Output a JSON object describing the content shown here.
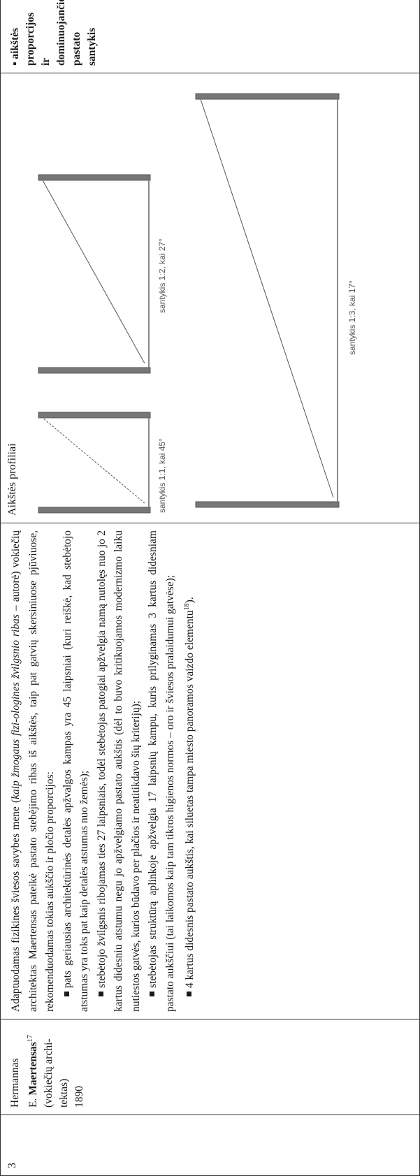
{
  "row": {
    "number": "3",
    "author": {
      "line1": "Hermannas",
      "initial": "E. ",
      "surname": "Maertensas",
      "sup": "17",
      "role": "(vokiečių archi-tektas)",
      "year": "1890"
    },
    "text": {
      "intro_a": "Adaptuodamas fizikines šviesos savybes mene (",
      "intro_italic": "kaip žmogaus fizi-ologines žvilgsnio ribas",
      "intro_b": " – autorė) vokiečių architektas Maertensas pateikė pastato stebėjimo ribas iš aikštės, taip pat gatvių skersiniuose pjūviuose, rekomenduodamas tokias aukščio ir pločio proporcijos:",
      "bullet1": "pats geriausias architektūrinės detalės apžvalgos kampas yra 45 laipsniai (kuri reiškė, kad stebėtojo atstumas yra toks pat kaip detalės atstumas nuo žemės);",
      "bullet2": "stebėtojo žvilgsnis ribojamas ties 27 laipsniais, todėl stebėtojas patogiai apžvelgia namą nutolęs nuo jo 2 kartus didesniu atstumu negu jo apžvelgiamo pastato aukštis (dėl to buvo kritikuojamos modernizmo laiku nutiestos gatvės, kurios būdavo per plačios ir neatitikdavo šių kriterijų);",
      "bullet3": "stebėtojas struktūrą aplinkoje apžvelgia 17 laipsnių kampu, kuris prilyginamas 3 kartus didesniam pastato aukščiui (tai laikomos kaip tam tikros higienos normos – oro ir šviesos pralaidumui gatvėse);",
      "bullet4a": "4 kartus didesnis pastato aukštis, kai siluetas tampa miesto panoramos vaizdo elementu",
      "bullet4sup": "18",
      "bullet4b": ")."
    },
    "figures": {
      "title": "Aikštės profiliai",
      "caption1": "santykis 1:1, kai 45°",
      "caption2": "santykis 1:2, kai 27°",
      "caption3": "santykis 1:3, kai 17°"
    },
    "criteria": "▪ aikštės proporcijos ir dominuojančio pastato santykis"
  }
}
